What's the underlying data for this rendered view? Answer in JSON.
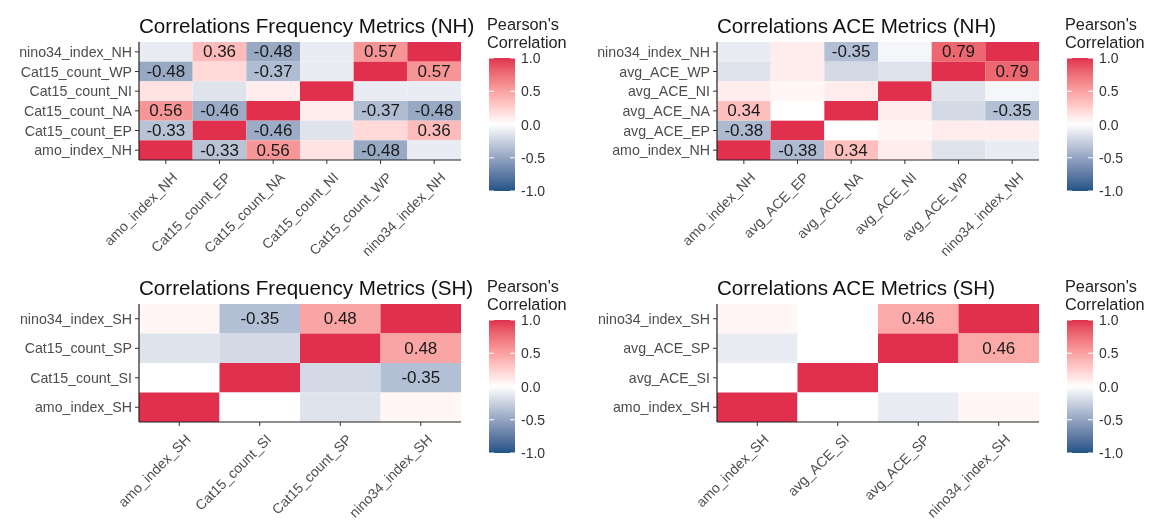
{
  "chart_data": [
    {
      "type": "heatmap",
      "title": "Correlations Frequency Metrics (NH)",
      "clabel": "Pearson's Correlation",
      "categories": [
        "amo_index_NH",
        "Cat15_count_EP",
        "Cat15_count_NA",
        "Cat15_count_NI",
        "Cat15_count_WP",
        "nino34_index_NH"
      ],
      "y_categories": [
        "nino34_index_NH",
        "Cat15_count_WP",
        "Cat15_count_NI",
        "Cat15_count_NA",
        "Cat15_count_EP",
        "amo_index_NH"
      ],
      "cells": [
        [
          -0.1,
          0.36,
          -0.48,
          -0.1,
          0.57,
          1
        ],
        [
          -0.48,
          0.2,
          -0.37,
          -0.1,
          1,
          0.57
        ],
        [
          0.15,
          -0.15,
          0.1,
          1,
          -0.1,
          -0.1
        ],
        [
          0.56,
          -0.46,
          1,
          0.1,
          -0.37,
          -0.48
        ],
        [
          -0.33,
          1,
          -0.46,
          -0.15,
          0.2,
          0.36
        ],
        [
          1,
          -0.33,
          0.56,
          0.15,
          -0.48,
          -0.1
        ]
      ],
      "cell_labels": [
        [
          null,
          "0.36",
          "-0.48",
          null,
          "0.57",
          null
        ],
        [
          "-0.48",
          null,
          "-0.37",
          null,
          null,
          "0.57"
        ],
        [
          null,
          null,
          null,
          null,
          null,
          null
        ],
        [
          "0.56",
          "-0.46",
          null,
          null,
          "-0.37",
          "-0.48"
        ],
        [
          "-0.33",
          null,
          "-0.46",
          null,
          null,
          "0.36"
        ],
        [
          null,
          "-0.33",
          "0.56",
          null,
          "-0.48",
          null
        ]
      ],
      "clim": [
        -1,
        1
      ],
      "cticks": [
        {
          "value": -1,
          "label": "-1.0"
        },
        {
          "value": -0.5,
          "label": "-0.5"
        },
        {
          "value": 0,
          "label": "0.0"
        },
        {
          "value": 0.5,
          "label": "0.5"
        },
        {
          "value": 1,
          "label": "1.0"
        }
      ]
    },
    {
      "type": "heatmap",
      "title": "Correlations ACE Metrics (NH)",
      "clabel": "Pearson's Correlation",
      "categories": [
        "amo_index_NH",
        "avg_ACE_EP",
        "avg_ACE_NA",
        "avg_ACE_NI",
        "avg_ACE_WP",
        "nino34_index_NH"
      ],
      "y_categories": [
        "nino34_index_NH",
        "avg_ACE_WP",
        "avg_ACE_NI",
        "avg_ACE_NA",
        "avg_ACE_EP",
        "amo_index_NH"
      ],
      "cells": [
        [
          -0.1,
          0.1,
          -0.35,
          -0.05,
          0.79,
          1
        ],
        [
          -0.15,
          0.1,
          -0.2,
          -0.15,
          1,
          0.79
        ],
        [
          0.1,
          0.05,
          0.1,
          1,
          -0.15,
          -0.05
        ],
        [
          0.34,
          0,
          1,
          0.1,
          -0.2,
          -0.35
        ],
        [
          -0.38,
          1,
          0,
          0.05,
          0.1,
          0.1
        ],
        [
          1,
          -0.38,
          0.34,
          0.1,
          -0.15,
          -0.1
        ]
      ],
      "cell_labels": [
        [
          null,
          null,
          "-0.35",
          null,
          "0.79",
          null
        ],
        [
          null,
          null,
          null,
          null,
          null,
          "0.79"
        ],
        [
          null,
          null,
          null,
          null,
          null,
          null
        ],
        [
          "0.34",
          null,
          null,
          null,
          null,
          "-0.35"
        ],
        [
          "-0.38",
          null,
          null,
          null,
          null,
          null
        ],
        [
          null,
          "-0.38",
          "0.34",
          null,
          null,
          null
        ]
      ],
      "clim": [
        -1,
        1
      ],
      "cticks": [
        {
          "value": -1,
          "label": "-1.0"
        },
        {
          "value": -0.5,
          "label": "-0.5"
        },
        {
          "value": 0,
          "label": "0.0"
        },
        {
          "value": 0.5,
          "label": "0.5"
        },
        {
          "value": 1,
          "label": "1.0"
        }
      ]
    },
    {
      "type": "heatmap",
      "title": "Correlations Frequency Metrics (SH)",
      "clabel": "Pearson's Correlation",
      "categories": [
        "amo_index_SH",
        "Cat15_count_SI",
        "Cat15_count_SP",
        "nino34_index_SH"
      ],
      "y_categories": [
        "nino34_index_SH",
        "Cat15_count_SP",
        "Cat15_count_SI",
        "amo_index_SH"
      ],
      "cells": [
        [
          0.05,
          -0.35,
          0.48,
          1
        ],
        [
          -0.15,
          -0.2,
          1,
          0.48
        ],
        [
          0,
          1,
          -0.2,
          -0.35
        ],
        [
          1,
          0,
          -0.15,
          0.05
        ]
      ],
      "cell_labels": [
        [
          null,
          "-0.35",
          "0.48",
          null
        ],
        [
          null,
          null,
          null,
          "0.48"
        ],
        [
          null,
          null,
          null,
          "-0.35"
        ],
        [
          null,
          null,
          null,
          null
        ]
      ],
      "clim": [
        -1,
        1
      ],
      "cticks": [
        {
          "value": -1,
          "label": "-1.0"
        },
        {
          "value": -0.5,
          "label": "-0.5"
        },
        {
          "value": 0,
          "label": "0.0"
        },
        {
          "value": 0.5,
          "label": "0.5"
        },
        {
          "value": 1,
          "label": "1.0"
        }
      ]
    },
    {
      "type": "heatmap",
      "title": "Correlations ACE Metrics (SH)",
      "clabel": "Pearson's Correlation",
      "categories": [
        "amo_index_SH",
        "avg_ACE_SI",
        "avg_ACE_SP",
        "nino34_index_SH"
      ],
      "y_categories": [
        "nino34_index_SH",
        "avg_ACE_SP",
        "avg_ACE_SI",
        "amo_index_SH"
      ],
      "cells": [
        [
          0.05,
          0,
          0.46,
          1
        ],
        [
          -0.1,
          0,
          1,
          0.46
        ],
        [
          0,
          1,
          0,
          0
        ],
        [
          1,
          0,
          -0.1,
          0.05
        ]
      ],
      "cell_labels": [
        [
          null,
          null,
          "0.46",
          null
        ],
        [
          null,
          null,
          null,
          "0.46"
        ],
        [
          null,
          null,
          null,
          null
        ],
        [
          null,
          null,
          null,
          null
        ]
      ],
      "clim": [
        -1,
        1
      ],
      "cticks": [
        {
          "value": -1,
          "label": "-1.0"
        },
        {
          "value": -0.5,
          "label": "-0.5"
        },
        {
          "value": 0,
          "label": "0.0"
        },
        {
          "value": 0.5,
          "label": "0.5"
        },
        {
          "value": 1,
          "label": "1.0"
        }
      ]
    }
  ]
}
